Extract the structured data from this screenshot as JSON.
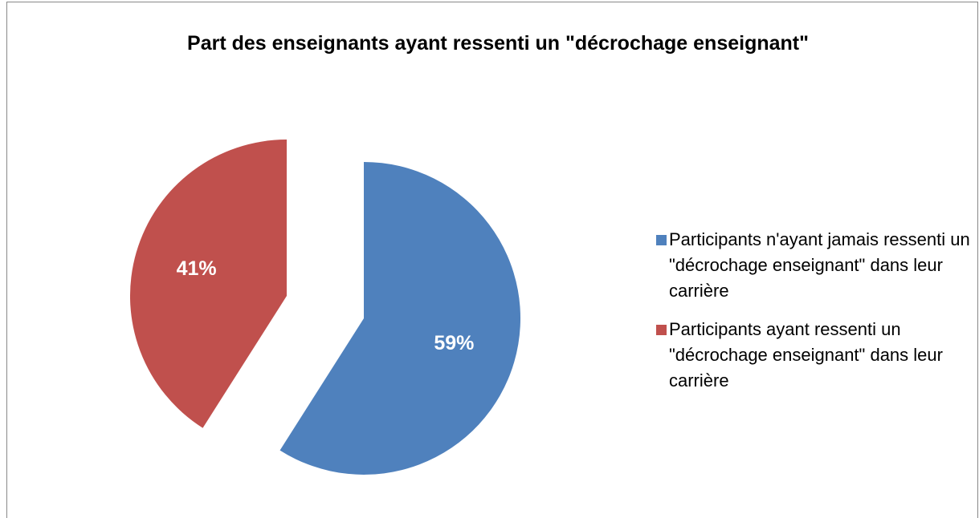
{
  "chart_data": {
    "type": "pie",
    "title": "Part des enseignants ayant ressenti un \"décrochage enseignant\"",
    "categories": [
      "Participants n'ayant jamais ressenti un \"décrochage enseignant\" dans leur carrière",
      "Participants ayant ressenti un \"décrochage enseignant\" dans leur carrière"
    ],
    "values": [
      59,
      41
    ],
    "value_labels": [
      "59%",
      "41%"
    ],
    "colors": [
      "#4f81bd",
      "#c0504d"
    ],
    "legend": "right",
    "exploded": true
  }
}
